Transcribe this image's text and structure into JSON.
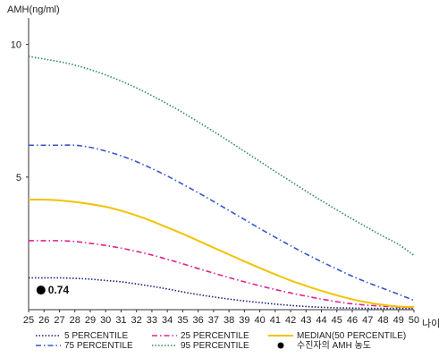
{
  "chart_data": {
    "type": "line",
    "ylabel": "AMH(ng/ml)",
    "xlabel": "나이",
    "xlim": [
      25,
      50
    ],
    "ylim": [
      0,
      11
    ],
    "x_ticks": [
      25,
      26,
      27,
      28,
      29,
      30,
      31,
      32,
      33,
      34,
      35,
      36,
      37,
      38,
      39,
      40,
      41,
      42,
      43,
      44,
      45,
      46,
      47,
      48,
      49,
      50
    ],
    "y_ticks": [
      5,
      10
    ],
    "grid": false,
    "legend_position": "bottom",
    "x": [
      25,
      26,
      27,
      28,
      29,
      30,
      31,
      32,
      33,
      34,
      35,
      36,
      37,
      38,
      39,
      40,
      41,
      42,
      43,
      44,
      45,
      46,
      47,
      48,
      49,
      50
    ],
    "series": [
      {
        "name": "5 PERCENTILE",
        "color": "#1a237e",
        "dash": "1.5,2",
        "values": [
          1.2,
          1.2,
          1.2,
          1.18,
          1.15,
          1.1,
          1.05,
          0.97,
          0.88,
          0.78,
          0.67,
          0.57,
          0.48,
          0.4,
          0.33,
          0.27,
          0.21,
          0.16,
          0.12,
          0.09,
          0.07,
          0.06,
          0.05,
          0.05,
          0.05,
          0.05
        ]
      },
      {
        "name": "25 PERCENTILE",
        "color": "#e0208f",
        "dash": "6,3,1.5,3",
        "values": [
          2.6,
          2.6,
          2.6,
          2.57,
          2.5,
          2.42,
          2.32,
          2.2,
          2.06,
          1.9,
          1.73,
          1.55,
          1.38,
          1.21,
          1.05,
          0.9,
          0.76,
          0.63,
          0.51,
          0.4,
          0.3,
          0.22,
          0.17,
          0.13,
          0.1,
          0.08
        ]
      },
      {
        "name": "MEDIAN(50 PERCENTILE)",
        "color": "#f2c200",
        "dash": "",
        "values": [
          4.15,
          4.15,
          4.12,
          4.06,
          3.98,
          3.88,
          3.73,
          3.55,
          3.34,
          3.1,
          2.86,
          2.6,
          2.34,
          2.08,
          1.82,
          1.57,
          1.33,
          1.1,
          0.9,
          0.71,
          0.54,
          0.39,
          0.27,
          0.18,
          0.12,
          0.1
        ]
      },
      {
        "name": "75 PERCENTILE",
        "color": "#3557c9",
        "dash": "6,3,1.5,3",
        "values": [
          6.2,
          6.2,
          6.2,
          6.2,
          6.12,
          5.98,
          5.8,
          5.58,
          5.32,
          5.04,
          4.73,
          4.41,
          4.08,
          3.74,
          3.4,
          3.06,
          2.73,
          2.41,
          2.1,
          1.81,
          1.53,
          1.26,
          1.02,
          0.8,
          0.58,
          0.35
        ]
      },
      {
        "name": "95 PERCENTILE",
        "color": "#2e8b57",
        "dash": "1.5,2",
        "values": [
          9.55,
          9.45,
          9.35,
          9.22,
          9.05,
          8.85,
          8.62,
          8.36,
          8.07,
          7.76,
          7.43,
          7.08,
          6.72,
          6.35,
          5.97,
          5.59,
          5.21,
          4.84,
          4.47,
          4.11,
          3.76,
          3.42,
          3.09,
          2.77,
          2.46,
          2.05
        ]
      }
    ],
    "points": [
      {
        "name": "수진자의 AMH 농도",
        "x": 25.8,
        "y": 0.74,
        "label": "0.74",
        "color": "#000000"
      }
    ],
    "legend": [
      {
        "label": "5 PERCENTILE",
        "series": 0
      },
      {
        "label": "25 PERCENTILE",
        "series": 1
      },
      {
        "label": "MEDIAN(50 PERCENTILE)",
        "series": 2
      },
      {
        "label": "75 PERCENTILE",
        "series": 3
      },
      {
        "label": "95 PERCENTILE",
        "series": 4
      },
      {
        "label": "수진자의 AMH 농도",
        "point": 0
      }
    ]
  }
}
